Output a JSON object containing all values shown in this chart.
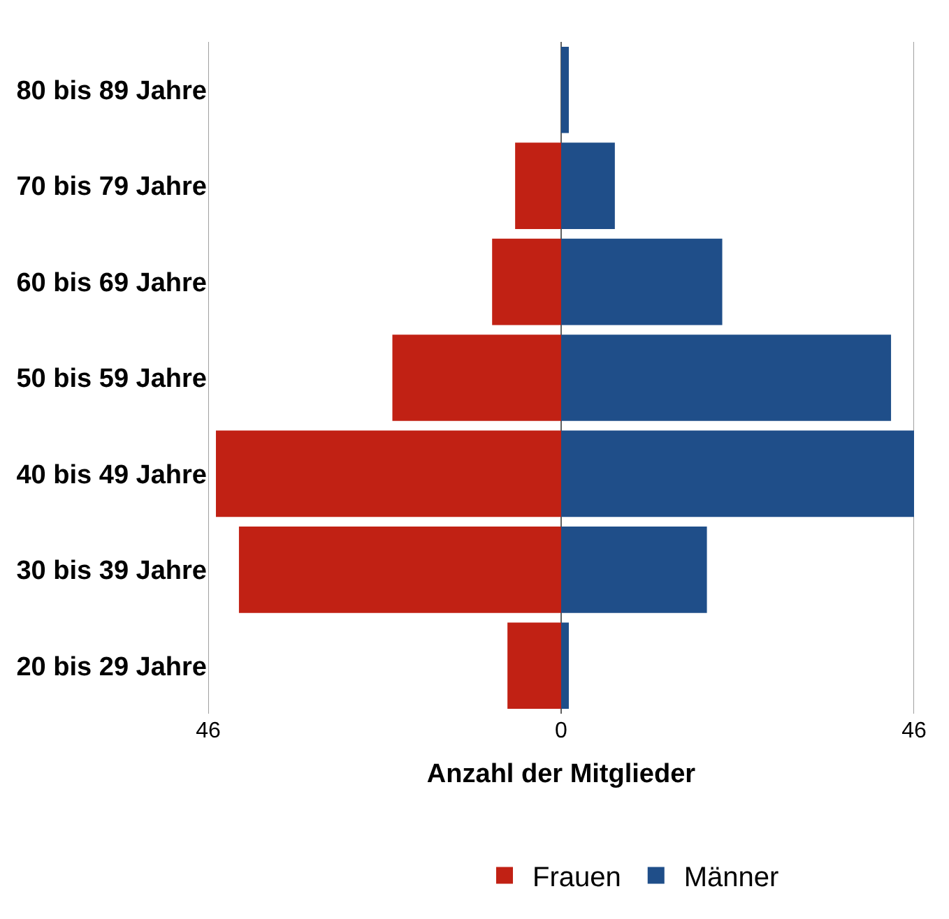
{
  "chart_data": {
    "type": "bar",
    "orientation": "horizontal",
    "xlabel": "Anzahl der Mitglieder",
    "categories": [
      "80 bis 89 Jahre",
      "70 bis 79 Jahre",
      "60 bis 69 Jahre",
      "50 bis 59 Jahre",
      "40 bis 49 Jahre",
      "30 bis 39 Jahre",
      "20 bis 29 Jahre"
    ],
    "series": [
      {
        "name": "Frauen",
        "color": "#c12114",
        "values": [
          0,
          -6,
          -9,
          -22,
          -45,
          -42,
          -7
        ]
      },
      {
        "name": "Männer",
        "color": "#1f4e89",
        "values": [
          1,
          7,
          21,
          43,
          46,
          19,
          1
        ]
      }
    ],
    "xlim": [
      -46,
      46
    ],
    "xticks": [
      {
        "value": -46,
        "label": "46"
      },
      0,
      46
    ],
    "stacked": true,
    "grid": "x",
    "legend": "bottom"
  }
}
